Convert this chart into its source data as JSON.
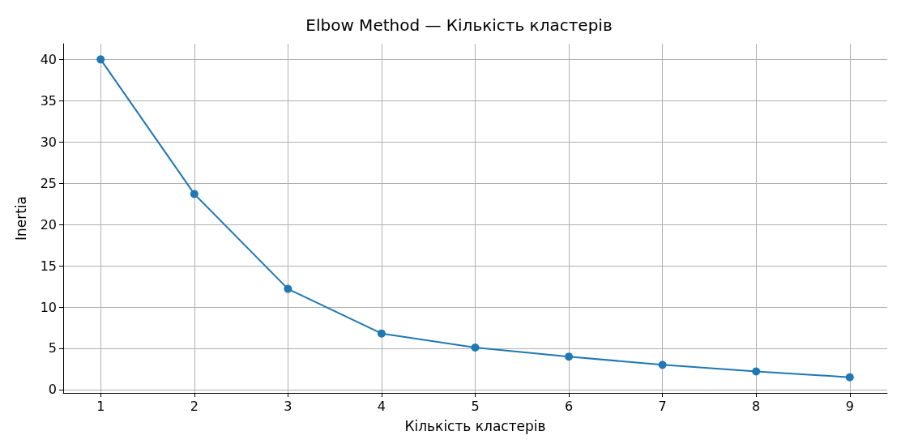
{
  "chart_data": {
    "type": "line",
    "title": "Elbow Method — Кількість кластерів",
    "xlabel": "Кількість кластерів",
    "ylabel": "Inertia",
    "x": [
      1,
      2,
      3,
      4,
      5,
      6,
      7,
      8,
      9
    ],
    "series": [
      {
        "color": "#1f77b4",
        "values": [
          40,
          23.7,
          12.2,
          6.8,
          5.1,
          4.0,
          3.0,
          2.2,
          1.5
        ]
      }
    ],
    "xlim": [
      0.6,
      9.4
    ],
    "xticks": [
      1,
      2,
      3,
      4,
      5,
      6,
      7,
      8,
      9
    ],
    "ylim": [
      -0.4,
      41.9
    ],
    "yticks": [
      0,
      5,
      10,
      15,
      20,
      25,
      30,
      35,
      40
    ],
    "grid": true,
    "marker": "circle",
    "line_style": "solid"
  }
}
